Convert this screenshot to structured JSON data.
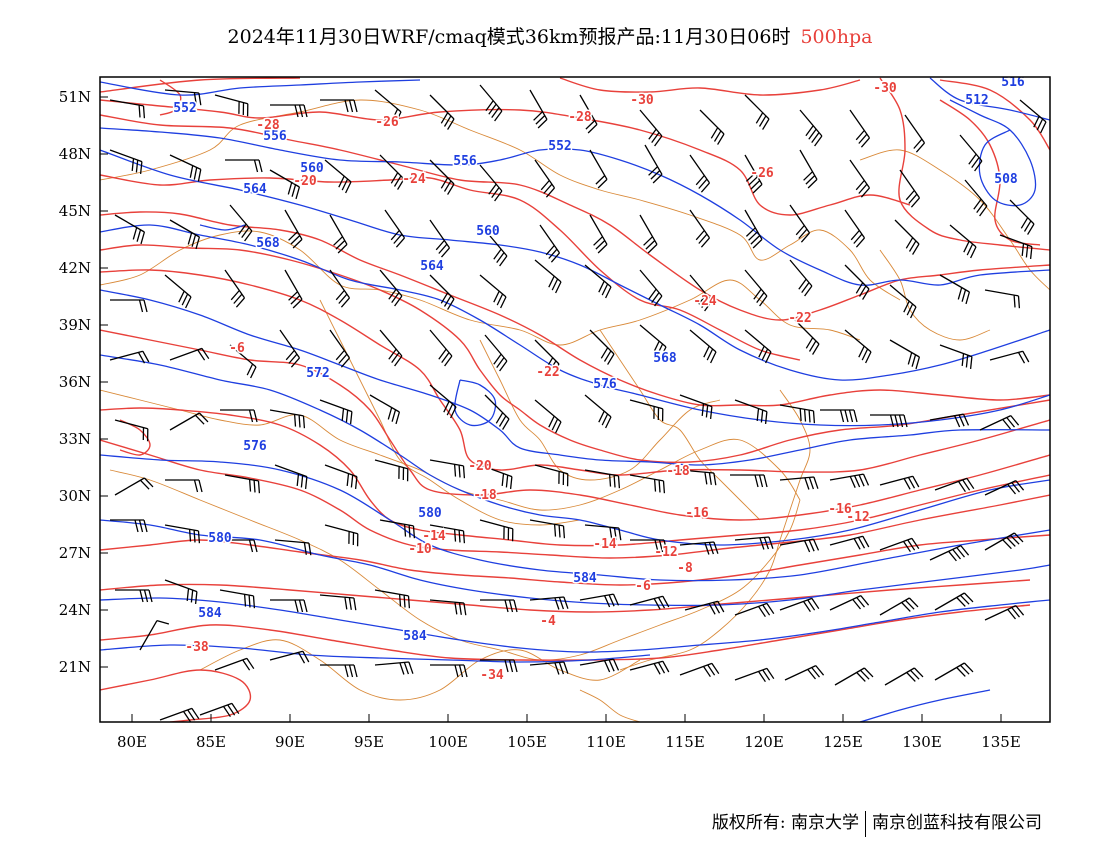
{
  "title": {
    "main": "2024年11月30日WRF/cmaq模式36km预报产品:11月30日06时",
    "level": "500hpa"
  },
  "axes": {
    "lat_ticks": [
      "51N",
      "48N",
      "45N",
      "42N",
      "39N",
      "36N",
      "33N",
      "30N",
      "27N",
      "24N",
      "21N"
    ],
    "lon_ticks": [
      "80E",
      "85E",
      "90E",
      "95E",
      "100E",
      "105E",
      "110E",
      "115E",
      "120E",
      "125E",
      "130E",
      "135E"
    ]
  },
  "colors": {
    "height": "#1f3fe0",
    "temperature": "#e8413b",
    "border": "#d98a3a",
    "wind": "#000000"
  },
  "chart_data": {
    "type": "contour",
    "lon_range": [
      78,
      138
    ],
    "lat_range": [
      18,
      52
    ],
    "height_contour_labels": [
      "552",
      "552",
      "556",
      "556",
      "560",
      "560",
      "564",
      "564",
      "568",
      "568",
      "572",
      "576",
      "576",
      "580",
      "580",
      "584",
      "584",
      "584",
      "508",
      "512",
      "516"
    ],
    "temperature_contour_labels": [
      "-30",
      "-30",
      "-28",
      "-28",
      "-26",
      "-26",
      "-24",
      "-24",
      "-22",
      "-22",
      "-20",
      "-20",
      "-18",
      "-18",
      "-16",
      "-16",
      "-14",
      "-14",
      "-12",
      "-12",
      "-10",
      "-8",
      "-6",
      "-6",
      "-4",
      "-38",
      "-34"
    ]
  },
  "footer": {
    "copyright": "版权所有: 南京大学",
    "company": "南京创蓝科技有限公司"
  }
}
